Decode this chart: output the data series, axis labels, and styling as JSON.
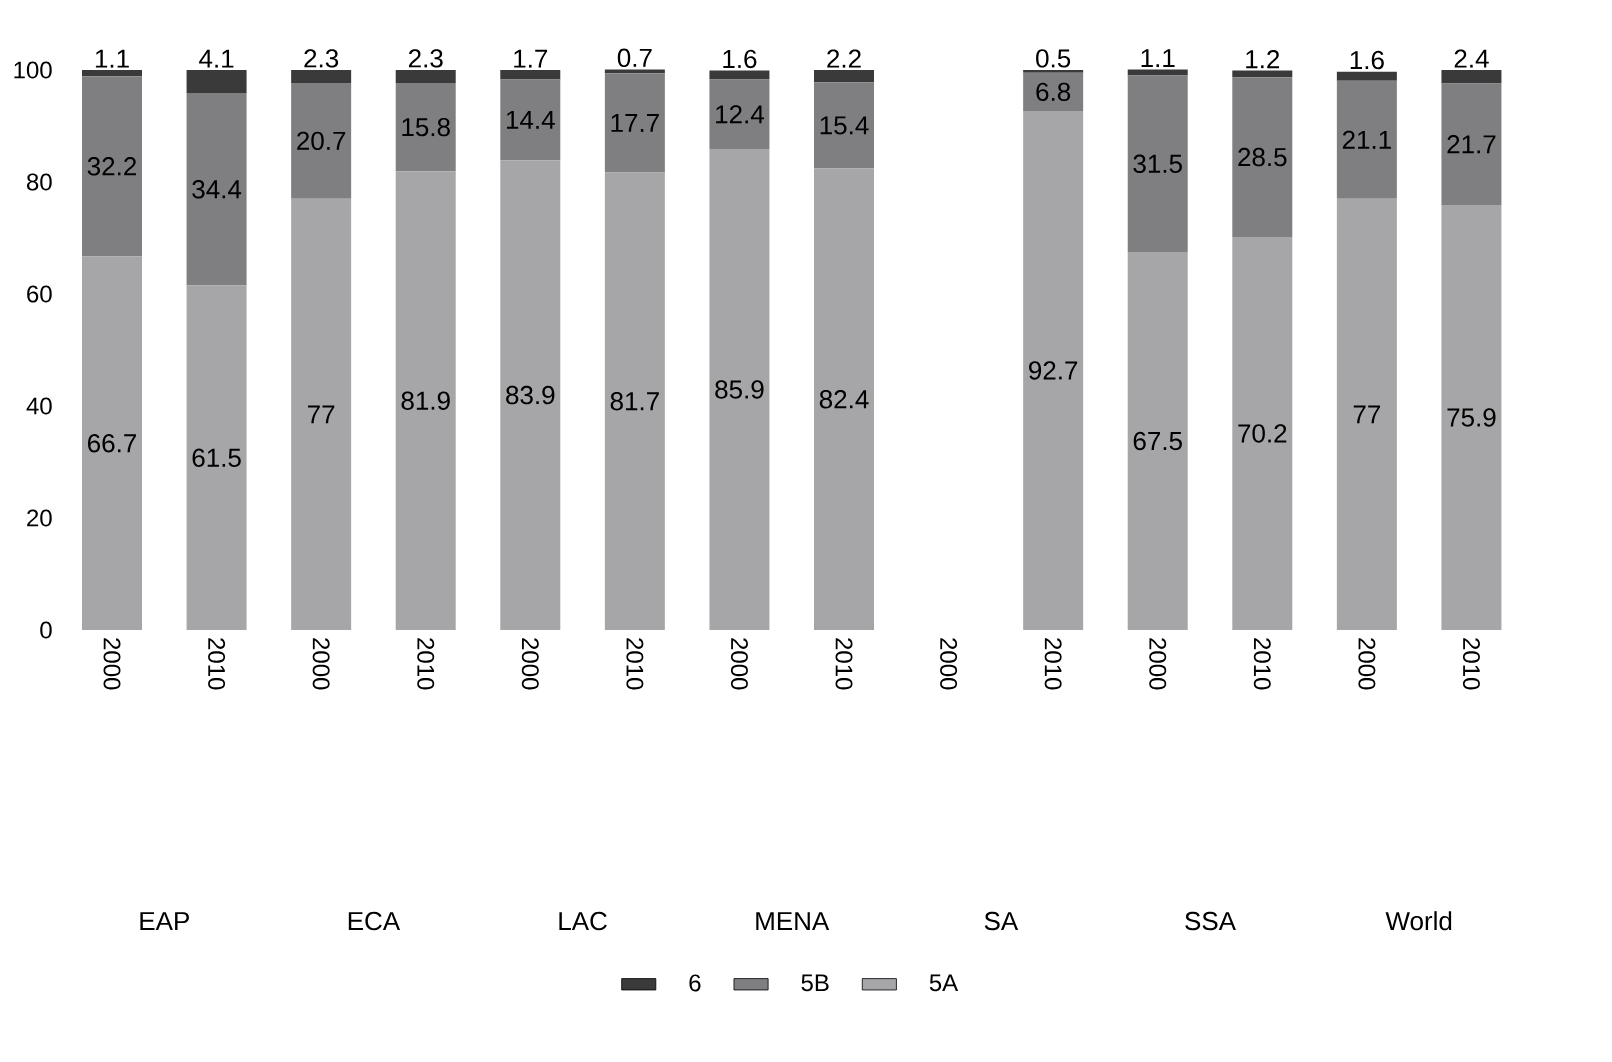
{
  "chart_data": {
    "type": "bar",
    "stacked": true,
    "data_labels": true,
    "legend": "bottom",
    "grid": false,
    "categories": [
      "2000",
      "2010",
      "2000",
      "2010",
      "2000",
      "2010",
      "2000",
      "2010",
      "2000",
      "2010",
      "2000",
      "2010",
      "2000",
      "2010"
    ],
    "annotations": [
      "EAP",
      "ECA",
      "LAC",
      "MENA",
      "SA",
      "SSA",
      "World"
    ],
    "ylim": [
      0,
      100
    ],
    "yticks": [
      0,
      20,
      40,
      60,
      80,
      100
    ],
    "series": [
      {
        "name": "5A",
        "color": "#a6a6a8",
        "values": [
          66.7,
          61.5,
          77,
          81.9,
          83.9,
          81.7,
          85.9,
          82.4,
          null,
          92.7,
          67.5,
          70.2,
          77,
          75.9
        ]
      },
      {
        "name": "5B",
        "color": "#7f7f81",
        "values": [
          32.2,
          34.4,
          20.7,
          15.8,
          14.4,
          17.7,
          12.4,
          15.4,
          null,
          6.8,
          31.5,
          28.5,
          21.1,
          21.7
        ]
      },
      {
        "name": "6",
        "color": "#3a3a3a",
        "values": [
          1.1,
          4.1,
          2.3,
          2.3,
          1.7,
          0.7,
          1.6,
          2.2,
          null,
          0.5,
          1.1,
          1.2,
          1.6,
          2.4
        ]
      }
    ]
  }
}
